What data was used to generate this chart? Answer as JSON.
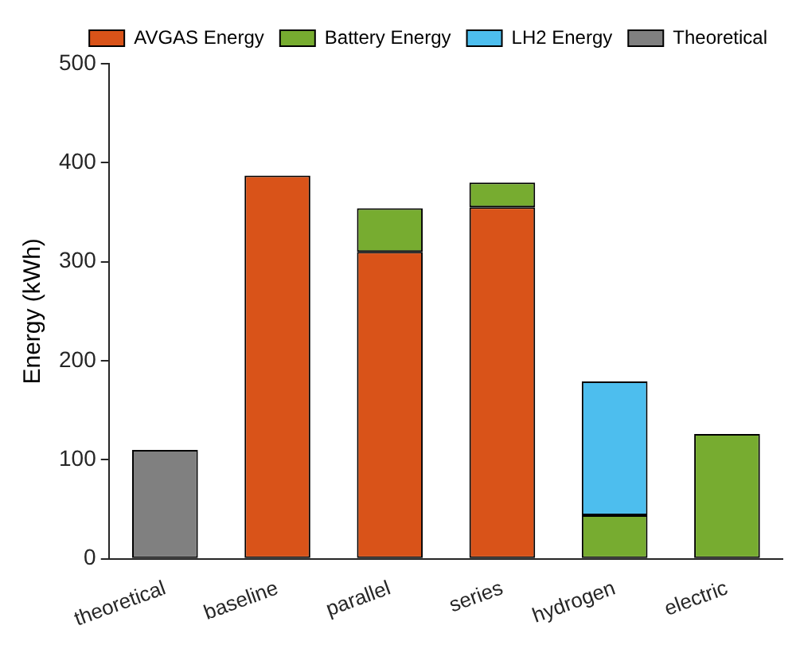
{
  "chart_data": {
    "type": "bar",
    "stacked": true,
    "ylabel": "Energy (kWh)",
    "categories": [
      "theoretical",
      "baseline",
      "parallel",
      "series",
      "hydrogen",
      "electric"
    ],
    "series": [
      {
        "name": "AVGAS Energy",
        "color": "#d95319",
        "values": [
          null,
          387,
          310,
          355,
          null,
          null
        ]
      },
      {
        "name": "Battery Energy",
        "color": "#77ac30",
        "values": [
          null,
          null,
          44,
          25,
          44,
          126
        ]
      },
      {
        "name": "LH2 Energy",
        "color": "#4dbeee",
        "values": [
          null,
          null,
          null,
          null,
          135,
          null
        ]
      },
      {
        "name": "Theoretical",
        "color": "#808080",
        "values": [
          110,
          null,
          null,
          null,
          null,
          null
        ]
      }
    ],
    "ylim": [
      0,
      500
    ],
    "yticks": [
      0,
      100,
      200,
      300,
      400,
      500
    ],
    "grid": false,
    "legend": "top right"
  }
}
